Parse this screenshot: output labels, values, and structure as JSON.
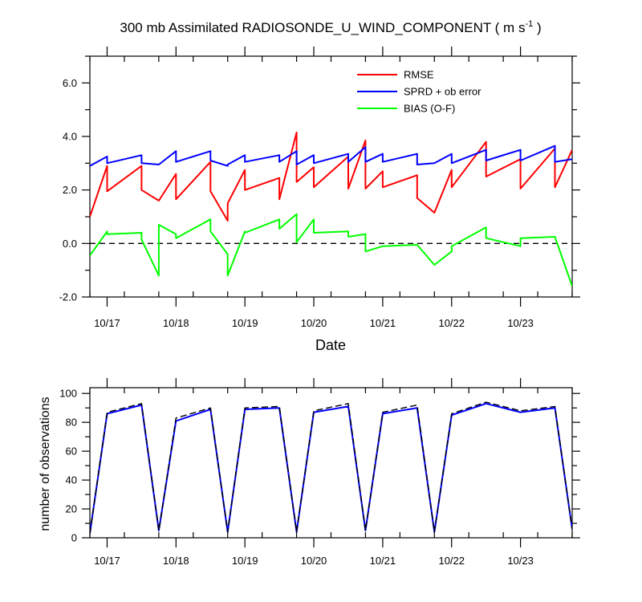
{
  "chart_data": [
    {
      "type": "line",
      "title": "300 mb Assimilated RADIOSONDE_U_WIND_COMPONENT ( m s",
      "title_sup": "-1",
      "title_end": " )",
      "xlabel": "Date",
      "ylabel": "",
      "x_tick_labels": [
        "10/17",
        "10/18",
        "10/19",
        "10/20",
        "10/21",
        "10/22",
        "10/23"
      ],
      "x_tick_values": [
        0.25,
        1.25,
        2.25,
        3.25,
        4.25,
        5.25,
        6.25
      ],
      "xlim": [
        0,
        7.0
      ],
      "ylim": [
        -2.0,
        7.0
      ],
      "y_ticks": [
        -2.0,
        0.0,
        2.0,
        4.0,
        6.0
      ],
      "y_tick_labels": [
        "-2.0",
        "0.0",
        "2.0",
        "4.0",
        "6.0"
      ],
      "zero_line": true,
      "legend_position": "top-right",
      "series": [
        {
          "name": "RMSE",
          "color": "#ff0000",
          "x": [
            0.0,
            0.25,
            0.25,
            0.75,
            0.75,
            1.0,
            1.25,
            1.25,
            1.75,
            1.75,
            2.0,
            2.0,
            2.25,
            2.25,
            2.75,
            2.75,
            3.0,
            3.0,
            3.25,
            3.25,
            3.75,
            3.75,
            4.0,
            4.0,
            4.25,
            4.25,
            4.75,
            4.75,
            5.0,
            5.25,
            5.25,
            5.75,
            5.75,
            6.25,
            6.25,
            6.75,
            6.75,
            7.0
          ],
          "y": [
            1.0,
            2.9,
            1.95,
            2.9,
            2.0,
            1.6,
            2.6,
            1.65,
            3.05,
            1.95,
            0.85,
            1.5,
            2.75,
            2.0,
            2.45,
            1.65,
            4.15,
            2.3,
            2.85,
            2.1,
            3.25,
            2.05,
            3.85,
            2.05,
            2.7,
            2.1,
            2.55,
            1.7,
            1.15,
            2.75,
            2.1,
            3.8,
            2.5,
            3.15,
            2.05,
            3.55,
            2.1,
            3.5
          ]
        },
        {
          "name": "SPRD + ob error",
          "color": "#0000ff",
          "x": [
            0.0,
            0.25,
            0.25,
            0.75,
            0.75,
            1.0,
            1.25,
            1.25,
            1.75,
            1.75,
            2.0,
            2.0,
            2.25,
            2.25,
            2.75,
            2.75,
            3.0,
            3.0,
            3.25,
            3.25,
            3.75,
            3.75,
            4.0,
            4.0,
            4.25,
            4.25,
            4.75,
            4.75,
            5.0,
            5.25,
            5.25,
            5.75,
            5.75,
            6.25,
            6.25,
            6.75,
            6.75,
            7.0
          ],
          "y": [
            2.9,
            3.25,
            3.0,
            3.3,
            3.0,
            2.95,
            3.45,
            3.05,
            3.45,
            3.1,
            2.9,
            2.95,
            3.3,
            3.05,
            3.3,
            3.05,
            3.45,
            2.95,
            3.3,
            3.0,
            3.35,
            3.05,
            3.6,
            3.05,
            3.35,
            3.05,
            3.35,
            2.95,
            3.0,
            3.35,
            3.0,
            3.5,
            3.1,
            3.5,
            3.1,
            3.65,
            3.05,
            3.15
          ]
        },
        {
          "name": "BIAS (O-F)",
          "color": "#00ff00",
          "x": [
            0.0,
            0.25,
            0.25,
            0.75,
            0.75,
            1.0,
            1.0,
            1.25,
            1.25,
            1.75,
            1.75,
            2.0,
            2.0,
            2.25,
            2.25,
            2.75,
            2.75,
            3.0,
            3.0,
            3.25,
            3.25,
            3.75,
            3.75,
            4.0,
            4.0,
            4.25,
            4.75,
            4.75,
            5.0,
            5.25,
            5.25,
            5.75,
            5.75,
            6.25,
            6.25,
            6.75,
            7.0
          ],
          "y": [
            -0.45,
            0.45,
            0.35,
            0.4,
            0.15,
            -1.2,
            0.7,
            0.35,
            0.2,
            0.9,
            0.45,
            -0.4,
            -1.2,
            0.45,
            0.4,
            0.9,
            0.55,
            1.1,
            0.05,
            0.9,
            0.4,
            0.45,
            0.25,
            0.35,
            -0.3,
            -0.1,
            -0.05,
            -0.05,
            -0.8,
            -0.3,
            -0.1,
            0.6,
            0.2,
            -0.1,
            0.2,
            0.25,
            -1.6
          ]
        }
      ]
    },
    {
      "type": "line",
      "title": "",
      "xlabel": "",
      "ylabel": "number of observations",
      "x_tick_labels": [
        "10/17",
        "10/18",
        "10/19",
        "10/20",
        "10/21",
        "10/22",
        "10/23"
      ],
      "x_tick_values": [
        0.25,
        1.25,
        2.25,
        3.25,
        4.25,
        5.25,
        6.25
      ],
      "xlim": [
        0,
        7.0
      ],
      "ylim": [
        0,
        104
      ],
      "y_ticks": [
        0,
        20,
        40,
        60,
        80,
        100
      ],
      "y_tick_labels": [
        "0",
        "20",
        "40",
        "60",
        "80",
        "100"
      ],
      "series": [
        {
          "name": "",
          "style": "solid",
          "color": "#0000ff",
          "x": [
            0.0,
            0.25,
            0.75,
            1.0,
            1.25,
            1.75,
            2.0,
            2.25,
            2.75,
            3.0,
            3.25,
            3.75,
            4.0,
            4.25,
            4.75,
            5.0,
            5.25,
            5.75,
            6.25,
            6.75,
            7.0
          ],
          "y": [
            3,
            86,
            92,
            5,
            81,
            89,
            4,
            89,
            90,
            4,
            87,
            91,
            5,
            86,
            90,
            4,
            85,
            93,
            87,
            90,
            6
          ]
        },
        {
          "name": "",
          "style": "dashed",
          "color": "#000000",
          "x": [
            0.0,
            0.25,
            0.75,
            1.0,
            1.25,
            1.75,
            2.0,
            2.25,
            2.75,
            3.0,
            3.25,
            3.75,
            4.0,
            4.25,
            4.75,
            5.0,
            5.25,
            5.75,
            6.25,
            6.75,
            7.0
          ],
          "y": [
            3,
            87,
            93,
            5,
            83,
            90,
            4,
            90,
            91,
            4,
            88,
            93,
            5,
            87,
            92,
            4,
            86,
            94,
            88,
            91,
            6
          ]
        }
      ]
    }
  ]
}
